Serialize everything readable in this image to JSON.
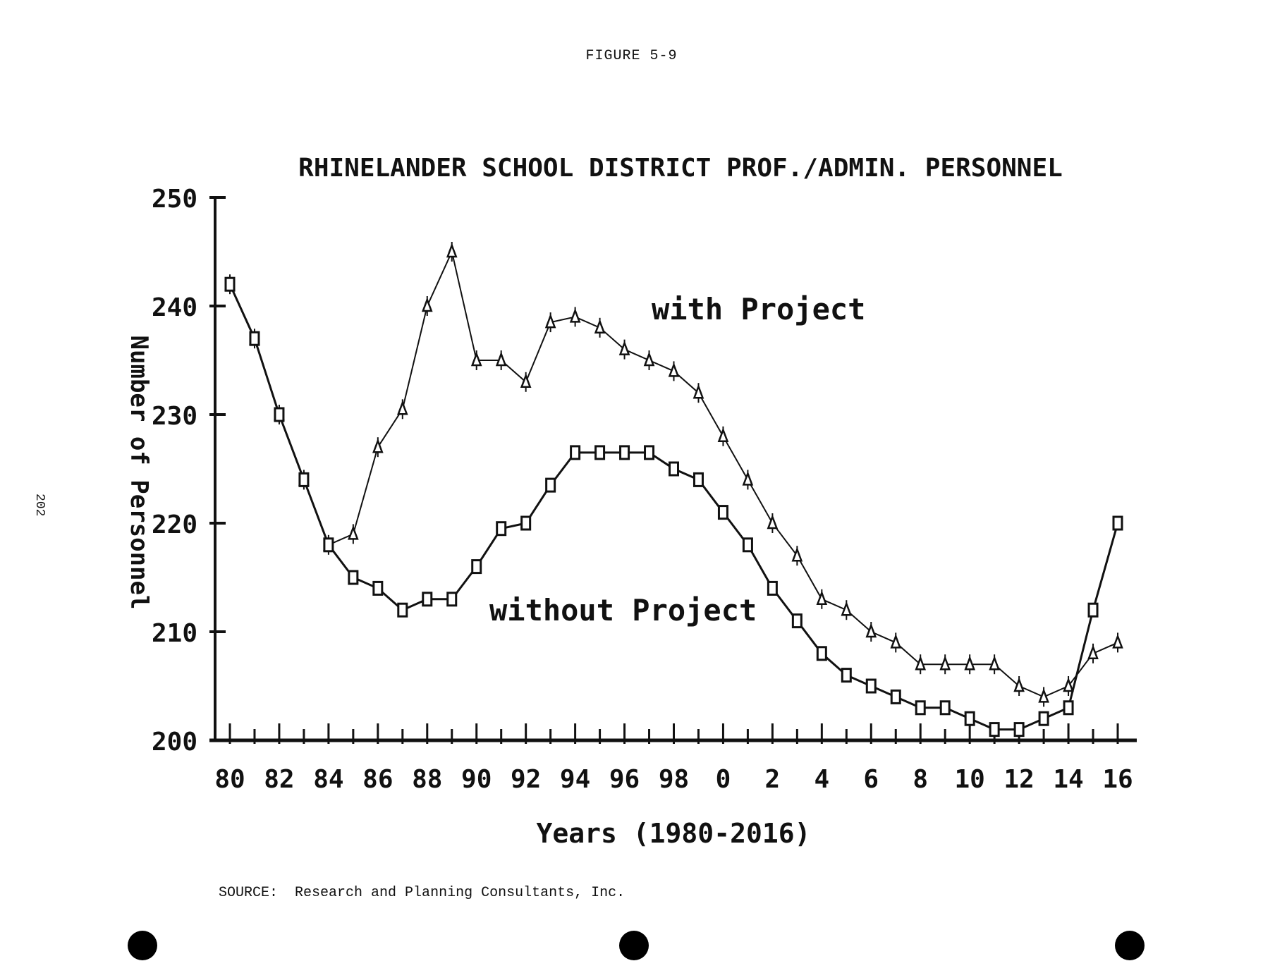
{
  "figure_label": "FIGURE 5-9",
  "page_number": "202",
  "source": {
    "label": "SOURCE:",
    "text": "Research and Planning Consultants, Inc."
  },
  "chart_data": {
    "type": "line",
    "title": "RHINELANDER SCHOOL DISTRICT PROF./ADMIN. PERSONNEL",
    "xlabel": "Years (1980-2016)",
    "ylabel": "Number of Personnel",
    "ylim": [
      200,
      250
    ],
    "yticks": [
      "200",
      "210",
      "220",
      "230",
      "240",
      "250"
    ],
    "x": [
      1980,
      1981,
      1982,
      1983,
      1984,
      1985,
      1986,
      1987,
      1988,
      1989,
      1990,
      1991,
      1992,
      1993,
      1994,
      1995,
      1996,
      1997,
      1998,
      1999,
      2000,
      2001,
      2002,
      2003,
      2004,
      2005,
      2006,
      2007,
      2008,
      2009,
      2010,
      2011,
      2012,
      2013,
      2014,
      2015,
      2016
    ],
    "xtick_labels": [
      "80",
      "82",
      "84",
      "86",
      "88",
      "90",
      "92",
      "94",
      "96",
      "98",
      "0",
      "2",
      "4",
      "6",
      "8",
      "10",
      "12",
      "14",
      "16"
    ],
    "grid": false,
    "series": [
      {
        "name": "with Project",
        "marker": "triangle",
        "values": [
          242,
          237,
          230,
          224,
          218,
          219,
          227,
          230.5,
          240,
          245,
          235,
          235,
          233,
          238.5,
          239,
          238,
          236,
          235,
          234,
          232,
          228,
          224,
          220,
          217,
          213,
          212,
          210,
          209,
          207,
          207,
          207,
          207,
          205,
          204,
          205,
          208,
          209
        ]
      },
      {
        "name": "without Project",
        "marker": "square",
        "values": [
          242,
          237,
          230,
          224,
          218,
          215,
          214,
          212,
          213,
          213,
          216,
          219.5,
          220,
          223.5,
          226.5,
          226.5,
          226.5,
          226.5,
          225,
          224,
          221,
          218,
          214,
          211,
          208,
          206,
          205,
          204,
          203,
          203,
          202,
          201,
          201,
          202,
          203,
          212,
          220
        ]
      }
    ],
    "annotations": [
      "with Project",
      "without Project"
    ],
    "colors": {
      "ink": "#111111",
      "paper": "#ffffff"
    }
  }
}
